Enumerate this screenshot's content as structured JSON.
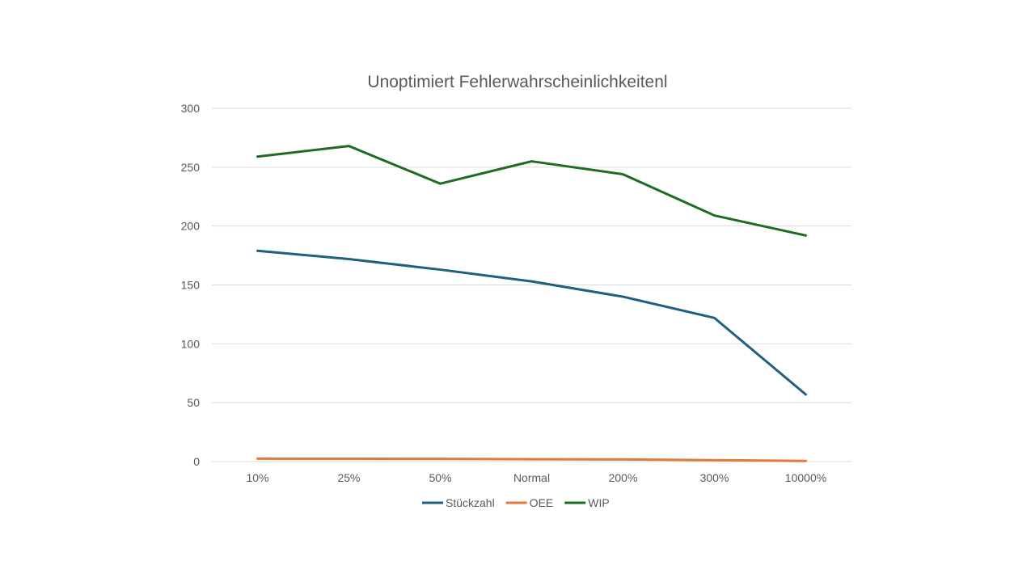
{
  "chart_data": {
    "type": "line",
    "title": "Unoptimiert Fehlerwahrscheinlichkeitenl",
    "xlabel": "",
    "ylabel": "",
    "categories": [
      "10%",
      "25%",
      "50%",
      "Normal",
      "200%",
      "300%",
      "10000%"
    ],
    "ylim": [
      0,
      300
    ],
    "yticks": [
      0,
      50,
      100,
      150,
      200,
      250,
      300
    ],
    "grid": true,
    "legend_position": "bottom",
    "series": [
      {
        "name": "Stückzahl",
        "color": "#1f5f7f",
        "values": [
          179,
          172,
          163,
          153,
          140,
          122,
          57
        ]
      },
      {
        "name": "OEE",
        "color": "#e07b39",
        "values": [
          2.5,
          2.4,
          2.3,
          2.0,
          1.8,
          1.2,
          0.5
        ]
      },
      {
        "name": "WIP",
        "color": "#1e6b23",
        "values": [
          259,
          268,
          236,
          255,
          244,
          209,
          192
        ]
      }
    ]
  }
}
